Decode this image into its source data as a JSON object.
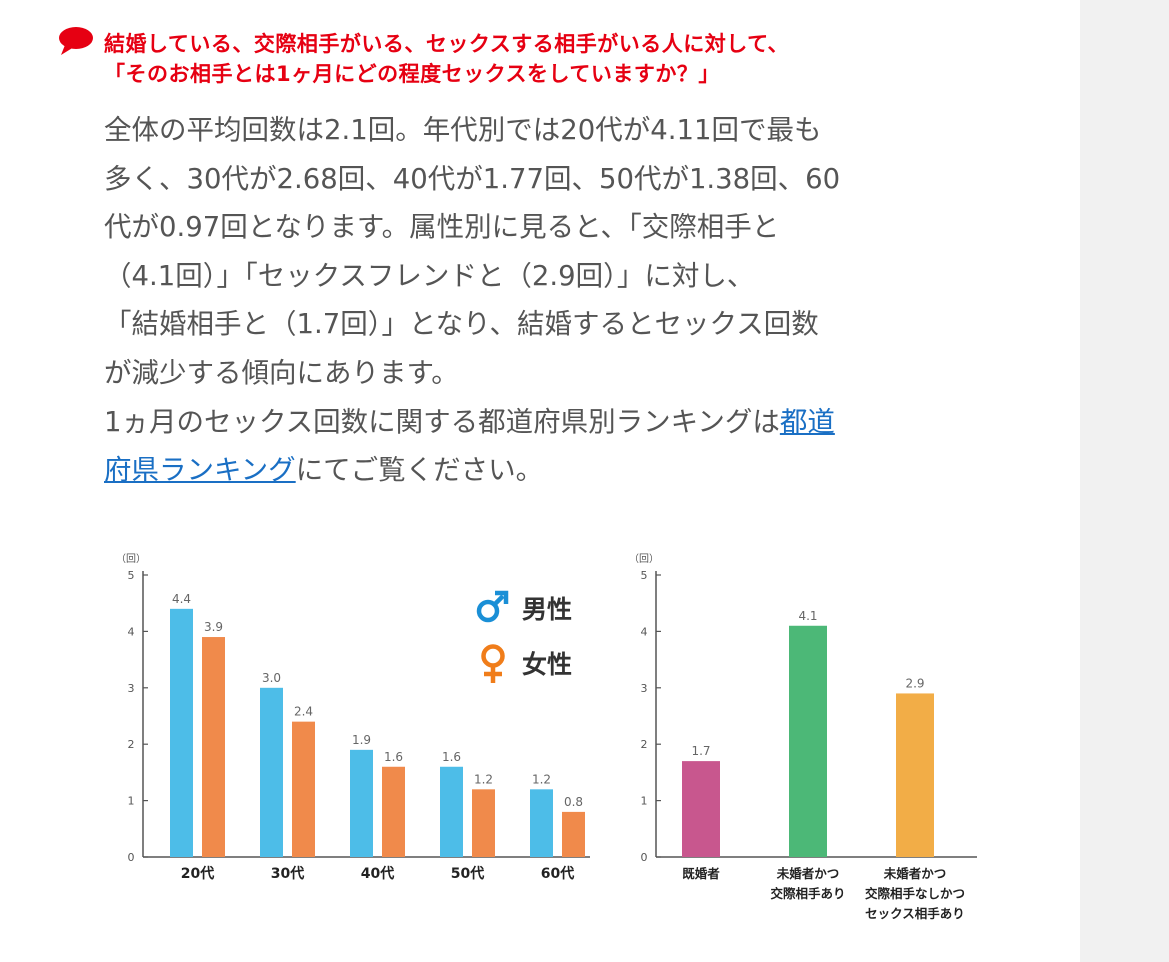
{
  "heading": {
    "line1": "結婚している、交際相手がいる、セックスする相手がいる人に対して、",
    "line2": "「そのお相手とは1ヶ月にどの程度セックスをしていますか？」"
  },
  "paragraph1": [
    "全体の平均回数は2.1回。年代別では20代が4.11回で最も",
    "多く、30代が2.68回、40代が1.77回、50代が1.38回、60",
    "代が0.97回となります。属性別に見ると、「交際相手と",
    "（4.1回）」「セックスフレンドと（2.9回）」に対し、",
    "「結婚相手と（1.7回）」となり、結婚するとセックス回数",
    "が減少する傾向にあります。"
  ],
  "paragraph2": {
    "before_link": "1ヵ月のセックス回数に関する都道府県別ランキングは",
    "link_part1": "都道",
    "link_part2": "府県ランキング",
    "after_link": "にてご覧ください。"
  },
  "chart_data": [
    {
      "type": "bar",
      "unit_label": "（回）",
      "categories": [
        "20代",
        "30代",
        "40代",
        "50代",
        "60代"
      ],
      "series": [
        {
          "name": "男性",
          "symbol": "♂",
          "color": "#4dbde8",
          "values": [
            4.4,
            3.0,
            1.9,
            1.6,
            1.2
          ]
        },
        {
          "name": "女性",
          "symbol": "♀",
          "color": "#f08a4b",
          "values": [
            3.9,
            2.4,
            1.6,
            1.2,
            0.8
          ]
        }
      ],
      "ylim": [
        0,
        5
      ],
      "yticks": [
        "0",
        "1",
        "2",
        "3",
        "4",
        "5"
      ],
      "legend": "top-right",
      "legend_colors": {
        "male": "#1a8fd6",
        "female": "#f07d1a"
      }
    },
    {
      "type": "bar",
      "unit_label": "（回）",
      "categories": [
        [
          "既婚者"
        ],
        [
          "未婚者かつ",
          "交際相手あり"
        ],
        [
          "未婚者かつ",
          "交際相手なしかつ",
          "セックス相手あり"
        ]
      ],
      "values": [
        1.7,
        4.1,
        2.9
      ],
      "colors": [
        "#c8578e",
        "#4cb877",
        "#f2ad47"
      ],
      "ylim": [
        0,
        5
      ],
      "yticks": [
        "0",
        "1",
        "2",
        "3",
        "4",
        "5"
      ]
    }
  ]
}
